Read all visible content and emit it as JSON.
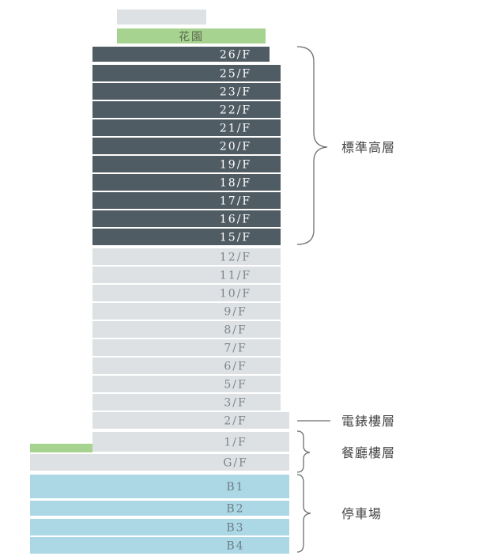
{
  "colors": {
    "high_floor": "#505c64",
    "standard": "#dde1e3",
    "garden": "#a6d38f",
    "basement": "#acd8e6",
    "high_text": "#ffffff",
    "standard_text": "#7d858a",
    "basement_text": "#6d7c84",
    "garden_text": "#5a6a4c",
    "bracket": "#6a6f73"
  },
  "roof": {
    "label": ""
  },
  "garden": {
    "label": "花園"
  },
  "floors": [
    {
      "label": "26/F",
      "zone": "high"
    },
    {
      "label": "25/F",
      "zone": "high"
    },
    {
      "label": "23/F",
      "zone": "high"
    },
    {
      "label": "22/F",
      "zone": "high"
    },
    {
      "label": "21/F",
      "zone": "high"
    },
    {
      "label": "20/F",
      "zone": "high"
    },
    {
      "label": "19/F",
      "zone": "high"
    },
    {
      "label": "18/F",
      "zone": "high"
    },
    {
      "label": "17/F",
      "zone": "high"
    },
    {
      "label": "16/F",
      "zone": "high"
    },
    {
      "label": "15/F",
      "zone": "high"
    },
    {
      "label": "12/F",
      "zone": "standard"
    },
    {
      "label": "11/F",
      "zone": "standard"
    },
    {
      "label": "10/F",
      "zone": "standard"
    },
    {
      "label": "9/F",
      "zone": "standard"
    },
    {
      "label": "8/F",
      "zone": "standard"
    },
    {
      "label": "7/F",
      "zone": "standard"
    },
    {
      "label": "6/F",
      "zone": "standard"
    },
    {
      "label": "5/F",
      "zone": "standard"
    },
    {
      "label": "3/F",
      "zone": "standard"
    },
    {
      "label": "2/F",
      "zone": "standard"
    },
    {
      "label": "1/F",
      "zone": "standard"
    },
    {
      "label": "G/F",
      "zone": "standard"
    },
    {
      "label": "B1",
      "zone": "basement"
    },
    {
      "label": "B2",
      "zone": "basement"
    },
    {
      "label": "B3",
      "zone": "basement"
    },
    {
      "label": "B4",
      "zone": "basement"
    }
  ],
  "annotations": {
    "standard_high": "標準高層",
    "lift_lobby": "電錶樓層",
    "restaurant": "餐廳樓層",
    "parking": "停車場"
  }
}
